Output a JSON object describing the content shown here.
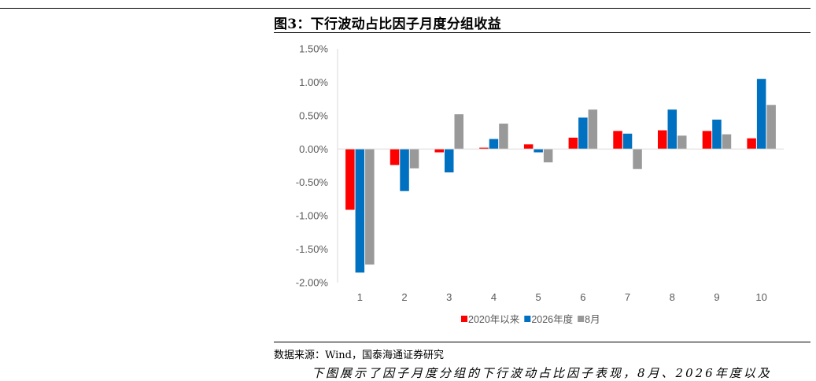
{
  "figure": {
    "title": "图3：下行波动占比因子月度分组收益",
    "source": "数据来源：Wind，国泰海通证券研究",
    "next_text": "下图展示了因子月度分组的下行波动占比因子表现，8月、2026年度以及"
  },
  "chart_data": {
    "type": "bar",
    "title": "",
    "xlabel": "",
    "ylabel": "",
    "categories": [
      "1",
      "2",
      "3",
      "4",
      "5",
      "6",
      "7",
      "8",
      "9",
      "10"
    ],
    "series": [
      {
        "name": "2020年以来",
        "color": "#ff0000",
        "values": [
          -0.0091,
          -0.0024,
          -0.0005,
          0.0002,
          0.0007,
          0.0017,
          0.0027,
          0.0028,
          0.0027,
          0.0016
        ]
      },
      {
        "name": "2026年度",
        "color": "#0070c0",
        "values": [
          -0.0185,
          -0.0063,
          -0.0035,
          0.0015,
          -0.0005,
          0.0047,
          0.0023,
          0.0059,
          0.0044,
          0.0105
        ]
      },
      {
        "name": "8月",
        "color": "#999999",
        "values": [
          -0.0173,
          -0.0029,
          0.0052,
          0.0038,
          -0.002,
          0.0059,
          -0.003,
          0.002,
          0.0022,
          0.0066
        ]
      }
    ],
    "ylim": [
      -0.02,
      0.015
    ],
    "yticks": [
      0.015,
      0.01,
      0.005,
      0.0,
      -0.005,
      -0.01,
      -0.015,
      -0.02
    ],
    "ytick_labels": [
      "1.50%",
      "1.00%",
      "0.50%",
      "0.00%",
      "-0.50%",
      "-1.00%",
      "-1.50%",
      "-2.00%"
    ],
    "grid": false,
    "legend_position": "bottom"
  }
}
